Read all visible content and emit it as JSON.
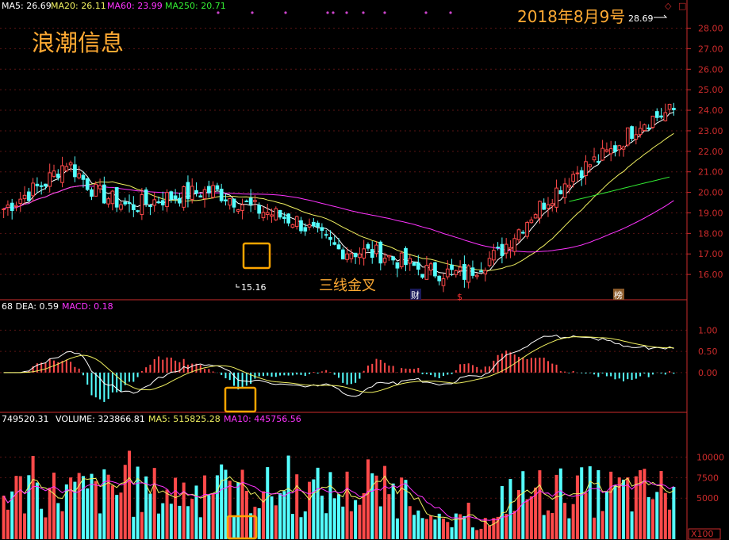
{
  "title": "浪潮信息",
  "date_text": "2018年8月9号",
  "annotation": "三线金叉",
  "markers": [
    "财",
    "$",
    "榜"
  ],
  "corner_icons": [
    "◇",
    "□"
  ],
  "colors": {
    "up": "#ff4a4a",
    "down": "#54ffff",
    "ma5": "#ffffff",
    "ma20": "#f0f060",
    "ma60": "#ff33ff",
    "ma250": "#33ee33",
    "highlight": "#ffa500",
    "axis": "#cc2b2b",
    "title": "#ffaa33"
  },
  "price_panel": {
    "legend": [
      {
        "text": "MA5: 26.69",
        "color": "#ffffff"
      },
      {
        "text": "MA20: 26.11",
        "color": "#f0f060"
      },
      {
        "text": "MA60: 23.99",
        "color": "#ff33ff"
      },
      {
        "text": "MA250: 20.71",
        "color": "#33ee33"
      }
    ],
    "high_label": "28.69",
    "low_label": "15.16",
    "ylim": [
      15,
      28.6
    ],
    "ticks": [
      "28.00",
      "27.00",
      "26.00",
      "25.00",
      "24.00",
      "23.00",
      "22.00",
      "21.00",
      "20.00",
      "19.00",
      "18.00",
      "17.00",
      "16.00"
    ]
  },
  "macd_panel": {
    "legend": [
      {
        "text": "68  DEA: 0.59",
        "color": "#ffffff"
      },
      {
        "text": "MACD: 0.18",
        "color": "#ff33ff"
      }
    ],
    "ylim": [
      -0.9,
      1.4
    ],
    "ticks": [
      "1.00",
      "0.50",
      "0.00"
    ]
  },
  "volume_panel": {
    "legend": [
      {
        "text": "749520.31",
        "color": "#ffffff"
      },
      {
        "text": "VOLUME: 323866.81",
        "color": "#ffffff"
      },
      {
        "text": "MA5: 515825.28",
        "color": "#f0f060"
      },
      {
        "text": "MA10: 445756.56",
        "color": "#ff33ff"
      }
    ],
    "ylim": [
      0,
      14000
    ],
    "ticks": [
      "10000",
      "7500",
      "5000"
    ],
    "unit": "X100"
  },
  "chart_data": {
    "type": "candlestick",
    "title": "浪潮信息",
    "n_bars": 161,
    "anchors": [
      [
        0,
        19.2
      ],
      [
        10,
        20.5
      ],
      [
        15,
        21.5
      ],
      [
        22,
        20.0
      ],
      [
        30,
        19.3
      ],
      [
        40,
        19.8
      ],
      [
        50,
        20.1
      ],
      [
        60,
        19.2
      ],
      [
        70,
        18.6
      ],
      [
        80,
        17.2
      ],
      [
        90,
        17.0
      ],
      [
        100,
        16.2
      ],
      [
        110,
        16.0
      ],
      [
        118,
        17.0
      ],
      [
        126,
        18.9
      ],
      [
        136,
        20.9
      ],
      [
        145,
        22.0
      ],
      [
        152,
        23.4
      ],
      [
        160,
        24.0
      ]
    ],
    "series": [
      {
        "name": "MA5",
        "value_last": 26.69
      },
      {
        "name": "MA20",
        "value_last": 26.11
      },
      {
        "name": "MA60",
        "value_last": 23.99
      },
      {
        "name": "MA250",
        "value_last": 20.71
      }
    ]
  }
}
